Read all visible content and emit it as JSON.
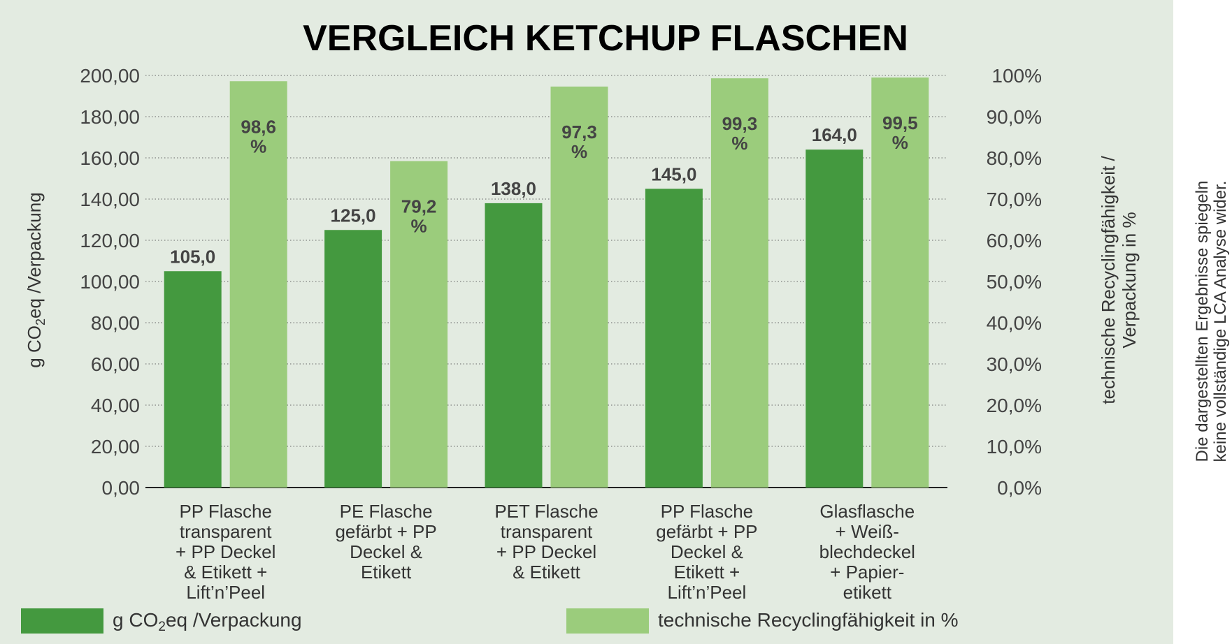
{
  "chart_data": {
    "type": "bar",
    "title": "VERGLEICH KETCHUP FLASCHEN",
    "categories": [
      [
        "PP Flasche",
        "transparent",
        "+ PP Deckel",
        "& Etikett +",
        "Lift’n’Peel"
      ],
      [
        "PE Flasche",
        "gefärbt + PP",
        "Deckel &",
        "Etikett"
      ],
      [
        "PET Flasche",
        "transparent",
        "+ PP Deckel",
        "& Etikett"
      ],
      [
        "PP Flasche",
        "gefärbt + PP",
        "Deckel &",
        "Etikett +",
        "Lift’n’Peel"
      ],
      [
        "Glasflasche",
        "+ Weiß-",
        "blechdeckel",
        "+ Papier-",
        "etikett"
      ]
    ],
    "series": [
      {
        "name": "g CO₂eq /Verpackung",
        "axis": "left",
        "color": "#44993f",
        "values": [
          105.0,
          125.0,
          138.0,
          145.0,
          164.0
        ],
        "labels": [
          "105,0",
          "125,0",
          "138,0",
          "145,0",
          "164,0"
        ]
      },
      {
        "name": "technische Recyclingfähigkeit in %",
        "axis": "right",
        "color": "#9bcc7c",
        "values": [
          98.6,
          79.2,
          97.3,
          99.3,
          99.5
        ],
        "labels": [
          [
            "98,6",
            "%"
          ],
          [
            "79,2",
            "%"
          ],
          [
            "97,3",
            "%"
          ],
          [
            "99,3",
            "%"
          ],
          [
            "99,5",
            "%"
          ]
        ]
      }
    ],
    "ylabel": "g CO₂eq /Verpackung",
    "ylabel_parts": [
      "g CO",
      "2",
      "eq /Verpackung"
    ],
    "ylim": [
      0,
      200
    ],
    "yticks": [
      "0,00",
      "20,00",
      "40,00",
      "60,00",
      "80,00",
      "100,00",
      "120,00",
      "140,00",
      "160,00",
      "180,00",
      "200,00"
    ],
    "y2label": [
      "technische Recyclingfähigkeit /",
      "Verpackung in %"
    ],
    "y2lim": [
      0,
      100
    ],
    "y2ticks": [
      "0,0%",
      "10,0%",
      "20,0%",
      "30,0%",
      "40,0%",
      "50,0%",
      "60,0%",
      "70,0%",
      "80,0%",
      "90,0%",
      "100%"
    ],
    "grid": true,
    "legend_position": "bottom",
    "legend": [
      {
        "parts": [
          "g CO",
          "2",
          "eq /Verpackung"
        ],
        "color": "#44993f"
      },
      {
        "parts": [
          "technische Recyclingfähigkeit in %"
        ],
        "color": "#9bcc7c"
      }
    ],
    "side_note": [
      "Die dargestellten Ergebnisse spiegeln",
      "keine vollständige LCA Analyse wider."
    ]
  }
}
